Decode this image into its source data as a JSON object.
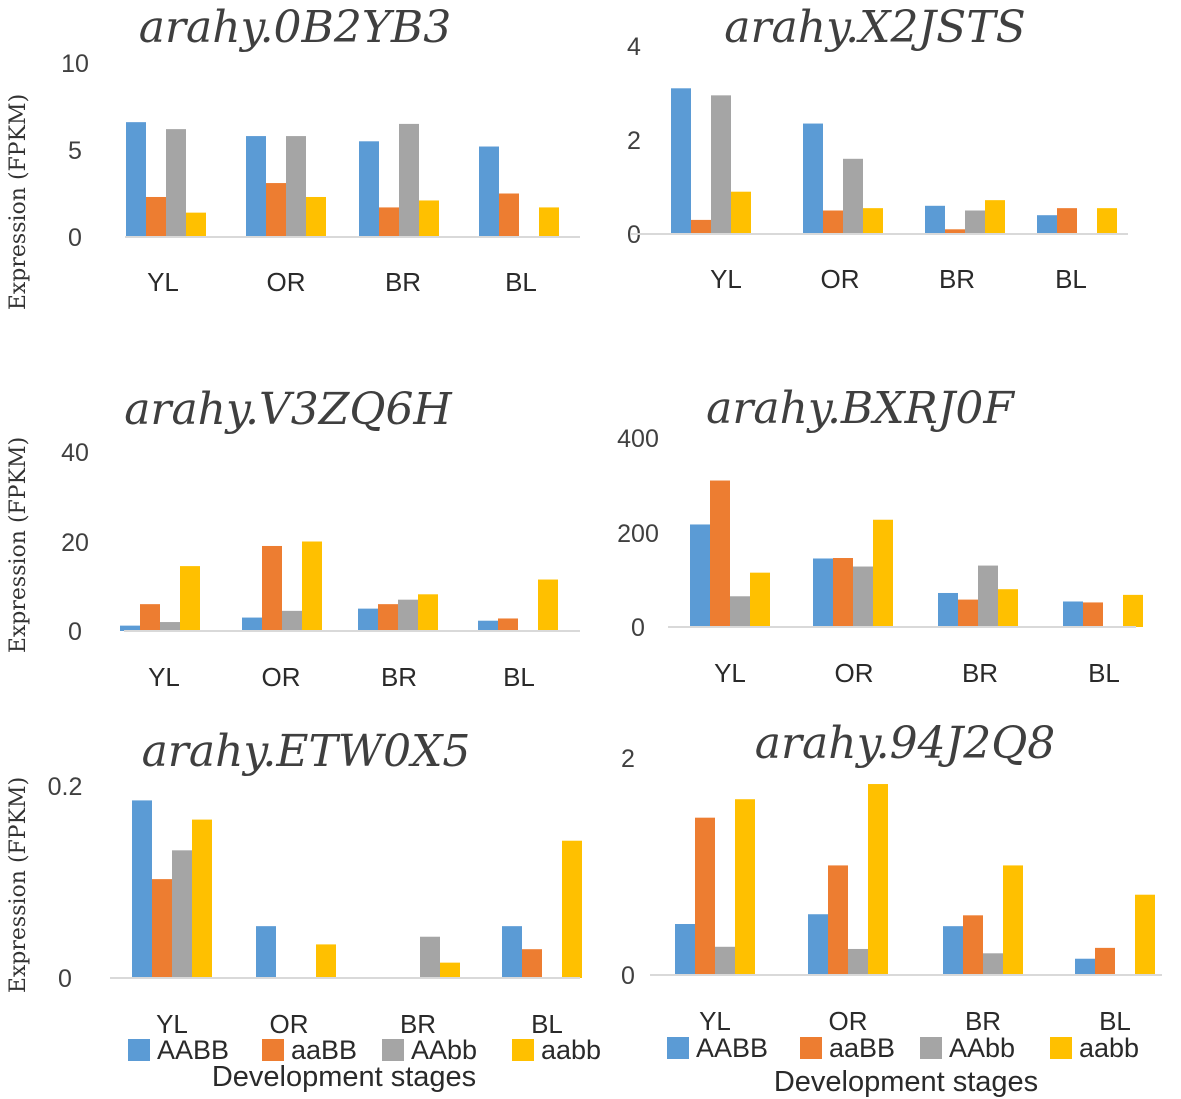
{
  "chart_data": [
    {
      "type": "bar",
      "title": "arahy.0B2YB3",
      "ylabel": "Expression (FPKM)",
      "xlabel": "",
      "categories": [
        "YL",
        "OR",
        "BR",
        "BL"
      ],
      "yticks": [
        "0",
        "5",
        "10"
      ],
      "ylim": [
        0,
        10
      ],
      "series": [
        {
          "name": "AABB",
          "values": [
            6.6,
            5.8,
            5.5,
            5.2
          ]
        },
        {
          "name": "aaBB",
          "values": [
            2.3,
            3.1,
            1.7,
            2.5
          ]
        },
        {
          "name": "AAbb",
          "values": [
            6.2,
            5.8,
            6.5,
            0
          ]
        },
        {
          "name": "aabb",
          "values": [
            1.4,
            2.3,
            2.1,
            1.7
          ]
        }
      ]
    },
    {
      "type": "bar",
      "title": "arahy.X2JSTS",
      "ylabel": "",
      "xlabel": "",
      "categories": [
        "YL",
        "OR",
        "BR",
        "BL"
      ],
      "yticks": [
        "0",
        "2",
        "4"
      ],
      "ylim": [
        0,
        4
      ],
      "series": [
        {
          "name": "AABB",
          "values": [
            3.1,
            2.35,
            0.6,
            0.4
          ]
        },
        {
          "name": "aaBB",
          "values": [
            0.3,
            0.5,
            0.1,
            0.55
          ]
        },
        {
          "name": "AAbb",
          "values": [
            2.95,
            1.6,
            0.5,
            0
          ]
        },
        {
          "name": "aabb",
          "values": [
            0.9,
            0.55,
            0.72,
            0.55
          ]
        }
      ]
    },
    {
      "type": "bar",
      "title": "arahy.V3ZQ6H",
      "ylabel": "Expression (FPKM)",
      "xlabel": "",
      "categories": [
        "YL",
        "OR",
        "BR",
        "BL"
      ],
      "yticks": [
        "0",
        "20",
        "40"
      ],
      "ylim": [
        0,
        40
      ],
      "series": [
        {
          "name": "AABB",
          "values": [
            1.2,
            3,
            5,
            2.3
          ]
        },
        {
          "name": "aaBB",
          "values": [
            6,
            19,
            6,
            2.8
          ]
        },
        {
          "name": "AAbb",
          "values": [
            2,
            4.5,
            7,
            0
          ]
        },
        {
          "name": "aabb",
          "values": [
            14.5,
            20,
            8.2,
            11.5
          ]
        }
      ]
    },
    {
      "type": "bar",
      "title": "arahy.BXRJ0F",
      "ylabel": "",
      "xlabel": "",
      "categories": [
        "YL",
        "OR",
        "BR",
        "BL"
      ],
      "yticks": [
        "0",
        "200",
        "400"
      ],
      "ylim": [
        0,
        400
      ],
      "series": [
        {
          "name": "AABB",
          "values": [
            217,
            145,
            72,
            54
          ]
        },
        {
          "name": "aaBB",
          "values": [
            310,
            146,
            58,
            52
          ]
        },
        {
          "name": "AAbb",
          "values": [
            65,
            128,
            130,
            0
          ]
        },
        {
          "name": "aabb",
          "values": [
            115,
            227,
            80,
            68
          ]
        }
      ]
    },
    {
      "type": "bar",
      "title": "arahy.ETW0X5",
      "ylabel": "Expression (FPKM)",
      "xlabel": "Development stages",
      "categories": [
        "YL",
        "OR",
        "BR",
        "BL"
      ],
      "yticks": [
        "0",
        "0.2"
      ],
      "ylim": [
        0,
        0.2
      ],
      "series": [
        {
          "name": "AABB",
          "values": [
            0.185,
            0.054,
            0,
            0.054
          ]
        },
        {
          "name": "aaBB",
          "values": [
            0.103,
            0,
            0,
            0.03
          ]
        },
        {
          "name": "AAbb",
          "values": [
            0.133,
            0,
            0.043,
            0
          ]
        },
        {
          "name": "aabb",
          "values": [
            0.165,
            0.035,
            0.016,
            0.143
          ]
        }
      ]
    },
    {
      "type": "bar",
      "title": "arahy.94J2Q8",
      "ylabel": "",
      "xlabel": "Development stages",
      "categories": [
        "YL",
        "OR",
        "BR",
        "BL"
      ],
      "yticks": [
        "0",
        "2"
      ],
      "ylim": [
        0,
        2
      ],
      "series": [
        {
          "name": "AABB",
          "values": [
            0.47,
            0.56,
            0.45,
            0.15
          ]
        },
        {
          "name": "aaBB",
          "values": [
            1.45,
            1.01,
            0.55,
            0.25
          ]
        },
        {
          "name": "AAbb",
          "values": [
            0.26,
            0.24,
            0.2,
            0
          ]
        },
        {
          "name": "aabb",
          "values": [
            1.62,
            1.76,
            1.01,
            0.74
          ]
        }
      ]
    }
  ],
  "legend": {
    "labels": [
      "AABB",
      "aaBB",
      "AAbb",
      "aabb"
    ],
    "colors": [
      "#5b9bd5",
      "#ed7d31",
      "#a5a5a5",
      "#ffc000"
    ]
  },
  "axis_color": "#d9d9d9"
}
